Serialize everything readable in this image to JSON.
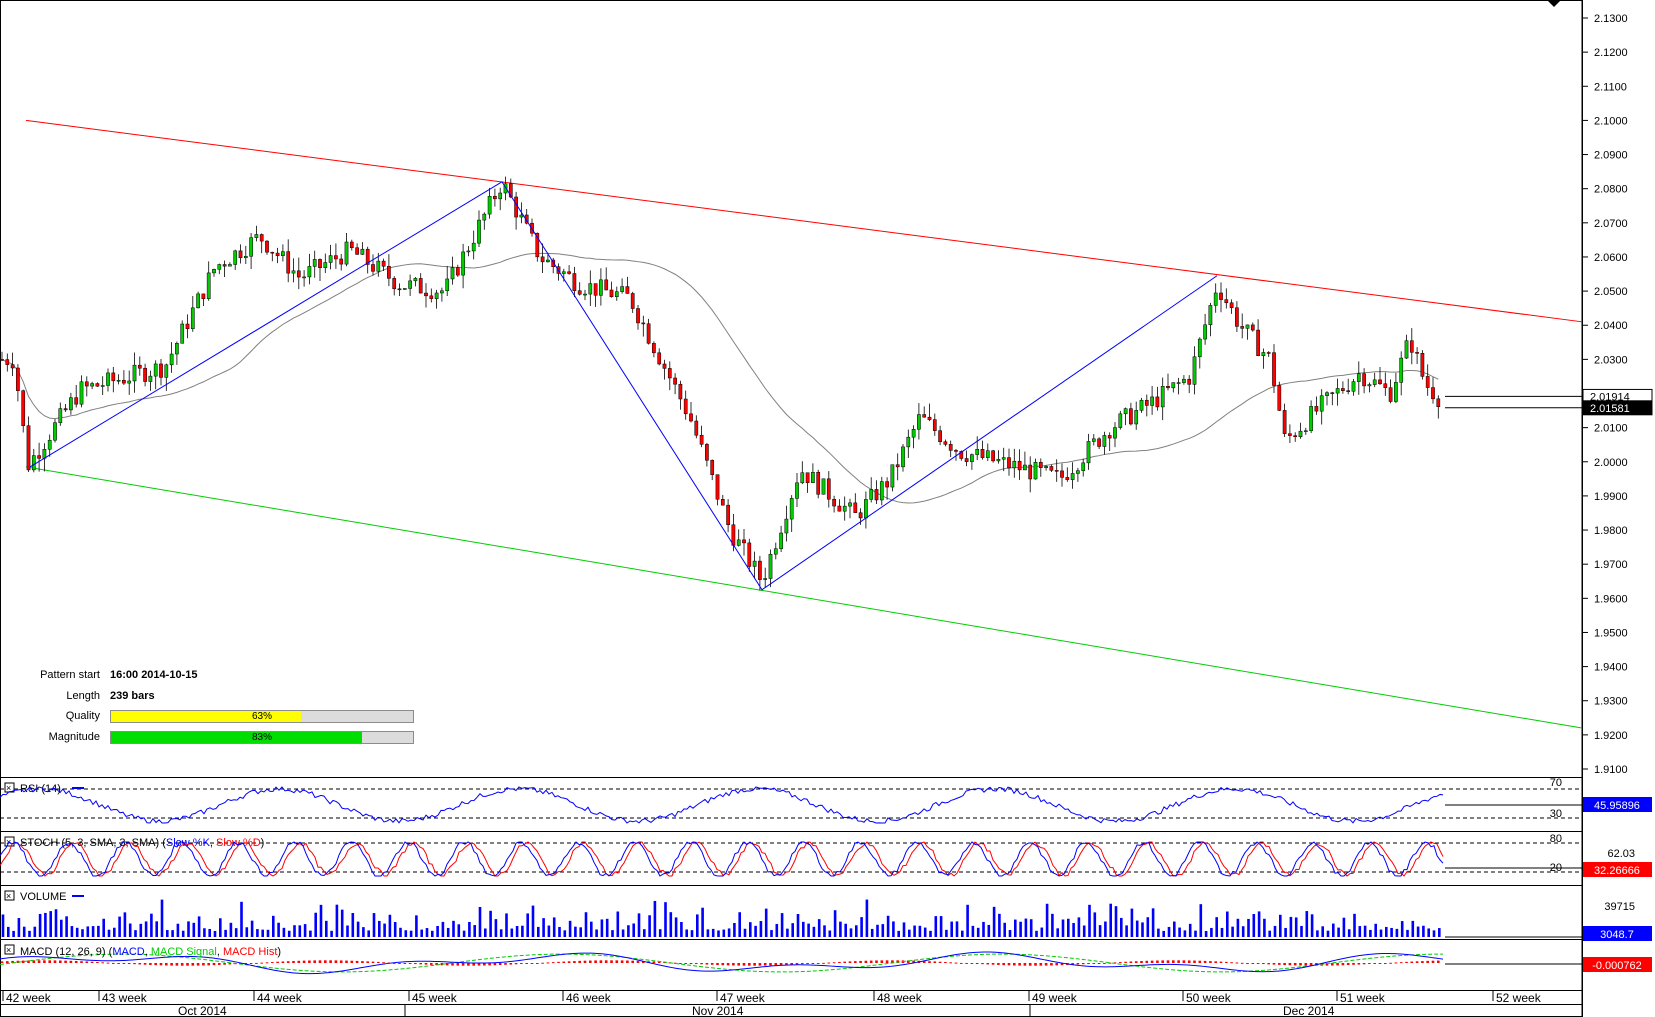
{
  "chart_data": {
    "type": "candlestick",
    "y_axis": {
      "ylim": [
        1.91,
        2.135
      ],
      "tick_labels": [
        "2.1300",
        "2.1200",
        "2.1100",
        "2.1000",
        "2.0900",
        "2.0800",
        "2.0700",
        "2.0600",
        "2.0500",
        "2.0400",
        "2.0300",
        "2.0200",
        "2.0100",
        "2.0000",
        "1.9900",
        "1.9800",
        "1.9700",
        "1.9600",
        "1.9500",
        "1.9400",
        "1.9300",
        "1.9200",
        "1.9100"
      ],
      "tick_values": [
        2.13,
        2.12,
        2.11,
        2.1,
        2.09,
        2.08,
        2.07,
        2.06,
        2.05,
        2.04,
        2.03,
        2.02,
        2.01,
        2.0,
        1.99,
        1.98,
        1.97,
        1.96,
        1.95,
        1.94,
        1.93,
        1.92,
        1.91
      ],
      "current_price_labels": [
        "2.01914",
        "2.01581"
      ]
    },
    "x_axis": {
      "week_labels": [
        "42 week",
        "43 week",
        "44 week",
        "45 week",
        "46 week",
        "47 week",
        "48 week",
        "49 week",
        "50 week",
        "51 week",
        "52 week"
      ],
      "month_labels": [
        "Oct 2014",
        "Nov 2014",
        "Dec 2014"
      ]
    },
    "pattern_channel": {
      "upper_line": {
        "start": 2.1,
        "end": 2.041
      },
      "lower_line": {
        "start": 1.9985,
        "end": 1.922
      },
      "zigzag_points": [
        1.9985,
        2.082,
        1.9625,
        2.0545
      ]
    },
    "indicators": [
      {
        "name": "RSI (14)",
        "levels": [
          "70",
          "30"
        ],
        "value": "45.95896"
      },
      {
        "name": "STOCH (5, 3, SMA, 3, SMA)",
        "series": [
          "Slow %K",
          "Slow %D"
        ],
        "levels": [
          "80",
          "62.03",
          "20"
        ],
        "value": "32.26666"
      },
      {
        "name": "VOLUME",
        "levels": [
          "39715"
        ],
        "value": "3048.7"
      },
      {
        "name": "MACD (12, 26, 9)",
        "series": [
          "MACD",
          "MACD Signal",
          "MACD Hist"
        ],
        "value": "-0.000762"
      }
    ]
  },
  "pattern_info": {
    "pattern_start_label": "Pattern start",
    "pattern_start_value": "16:00 2014-10-15",
    "length_label": "Length",
    "length_value": "239 bars",
    "quality_label": "Quality",
    "quality_value": 63,
    "quality_text": "63%",
    "magnitude_label": "Magnitude",
    "magnitude_value": 83,
    "magnitude_text": "83%"
  },
  "labels": {
    "rsi_title": "RSI (14)",
    "stoch_title_prefix": "STOCH (5, 3, SMA, 3, SMA) (",
    "stoch_k": "Slow %K",
    "stoch_d": "Slow %D",
    "volume_title": "VOLUME",
    "macd_title_prefix": "MACD (12, 26, 9) (",
    "macd_line": "MACD",
    "macd_signal": "MACD Signal",
    "macd_hist": "MACD Hist"
  },
  "colors": {
    "upper_channel": "#ff0000",
    "lower_channel": "#00cc00",
    "zigzag": "#0000ff",
    "candle_up": "#00cc00",
    "candle_down": "#ff0000",
    "moving_average": "#808080",
    "quality_bar": "#ffff00",
    "magnitude_bar": "#00dd00",
    "volume": "#0000ff",
    "macd_hist": "#ff0000",
    "macd_signal": "#00cc00"
  }
}
